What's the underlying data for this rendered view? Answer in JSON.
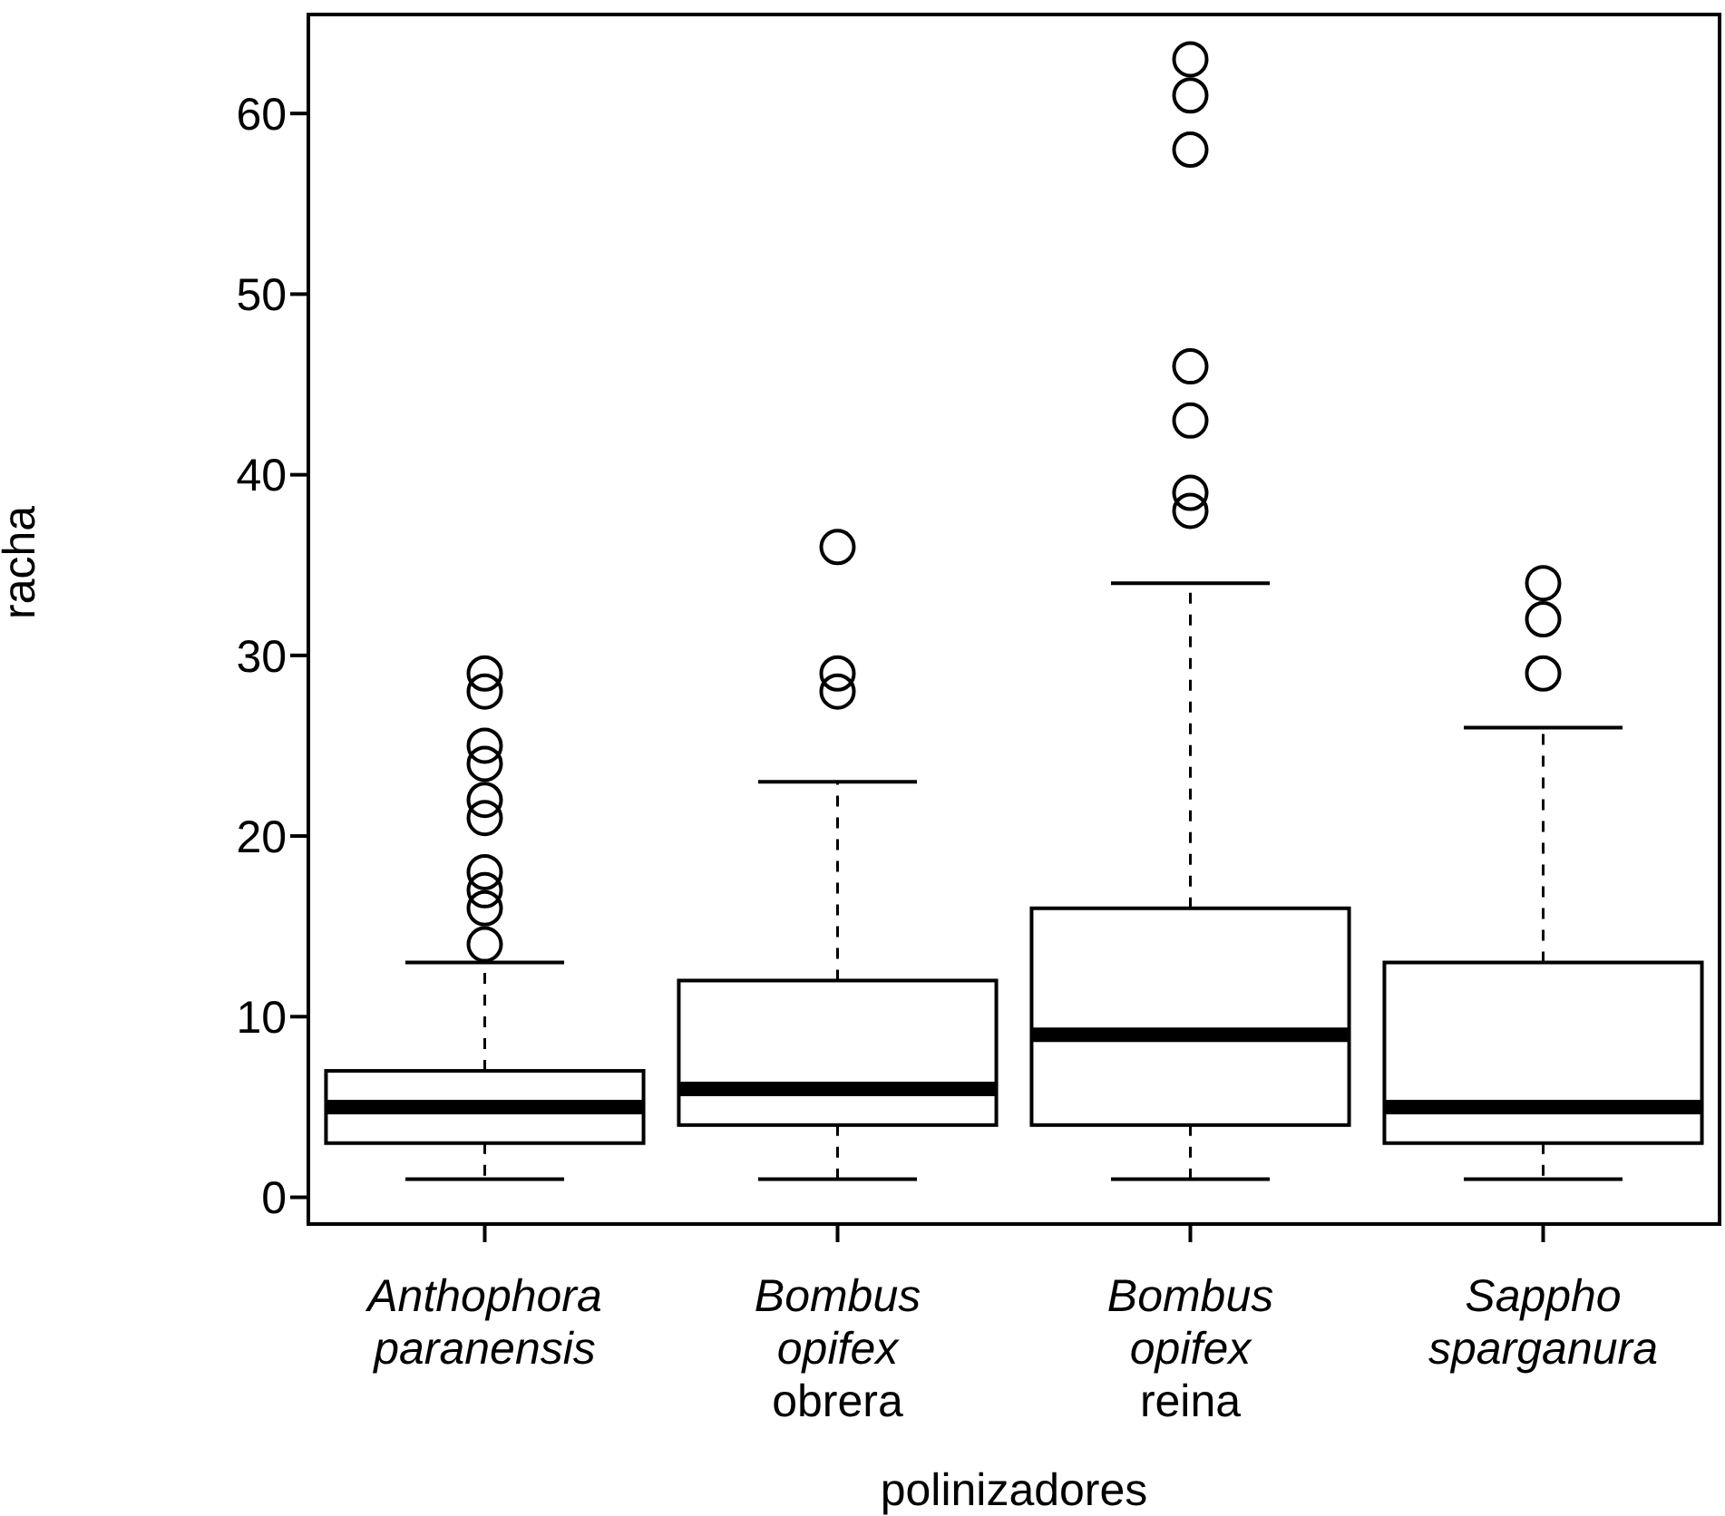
{
  "chart_data": {
    "type": "box",
    "xlabel": "polinizadores",
    "ylabel": "racha",
    "categories": [
      "Anthophora\nparanensis",
      "Bombus\nopifex\nobrera",
      "Bombus\nopifex\nreina",
      "Sappho\nsparganura"
    ],
    "boxes": [
      {
        "low": 1,
        "q1": 3,
        "median": 5,
        "q3": 7,
        "high": 13,
        "outliers": [
          14,
          16,
          17,
          18,
          21,
          22,
          24,
          25,
          28,
          29
        ]
      },
      {
        "low": 1,
        "q1": 4,
        "median": 6,
        "q3": 12,
        "high": 23,
        "outliers": [
          28,
          29,
          36
        ]
      },
      {
        "low": 1,
        "q1": 4,
        "median": 9,
        "q3": 16,
        "high": 34,
        "outliers": [
          38,
          39,
          43,
          46,
          58,
          61,
          63
        ]
      },
      {
        "low": 1,
        "q1": 3,
        "median": 5,
        "q3": 13,
        "high": 26,
        "outliers": [
          29,
          32,
          34
        ]
      }
    ],
    "ylim": [
      -1.48,
      65.48
    ],
    "yticks": [
      0,
      10,
      20,
      30,
      40,
      50,
      60
    ],
    "grid": false
  }
}
